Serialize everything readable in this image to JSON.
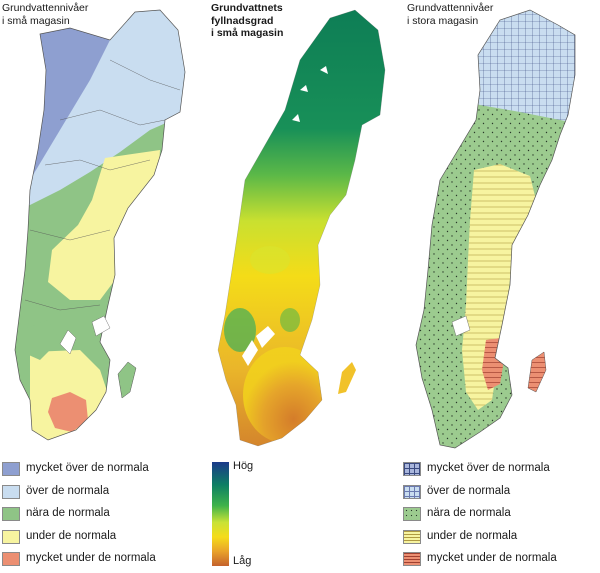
{
  "panels": {
    "left_title": "Grundvattennivåer\ni små magasin",
    "middle_title": "Grundvattnets\nfyllnadsgrad\ni små magasin",
    "right_title": "Grundvattennivåer\ni stora magasin"
  },
  "legend_left": [
    {
      "label": "mycket över de normala",
      "color": "#8e9fd0"
    },
    {
      "label": "över de normala",
      "color": "#c9ddf0"
    },
    {
      "label": "nära de normala",
      "color": "#8fc486"
    },
    {
      "label": "under de normala",
      "color": "#f7f4a0"
    },
    {
      "label": "mycket under de normala",
      "color": "#ec8f72"
    }
  ],
  "scale": {
    "high": "Hög",
    "low": "Låg"
  },
  "legend_right": [
    {
      "label": "mycket över de normala",
      "color": "#a9b6dc",
      "pattern": "grid"
    },
    {
      "label": "över de normala",
      "color": "#c9ddf0",
      "pattern": "grid"
    },
    {
      "label": "nära de normala",
      "color": "#9ccb8f",
      "pattern": "dots"
    },
    {
      "label": "under de normala",
      "color": "#f7f4a0",
      "pattern": "hlines"
    },
    {
      "label": "mycket under de normala",
      "color": "#ec8f72",
      "pattern": "hlines"
    }
  ]
}
